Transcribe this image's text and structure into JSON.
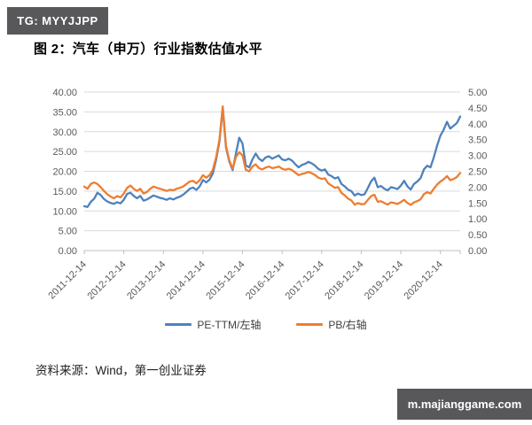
{
  "badge_top": "TG: MYYJJPP",
  "watermark": "m.majianggame.com",
  "title": "图 2：汽车（申万）行业指数估值水平",
  "source": "资料来源：Wind，第一创业证券",
  "colors": {
    "pe_line": "#4E81BD",
    "pb_line": "#ED7D31",
    "gridline": "#D9D9D9",
    "axis_line": "#BFBFBF",
    "axis_text": "#595959",
    "badge_bg": "#58585A"
  },
  "chart_data": {
    "type": "line",
    "title": "",
    "grid": true,
    "legend_position": "bottom",
    "x_tick_labels": [
      "2011-12-14",
      "2012-12-14",
      "2013-12-14",
      "2014-12-14",
      "2015-12-14",
      "2016-12-14",
      "2017-12-14",
      "2018-12-14",
      "2019-12-14",
      "2020-12-14"
    ],
    "x_tick_indices": [
      0,
      12,
      24,
      36,
      48,
      60,
      72,
      84,
      96,
      108
    ],
    "left_axis": {
      "min": 0,
      "max": 40,
      "step": 5,
      "labels": [
        "0.00",
        "5.00",
        "10.00",
        "15.00",
        "20.00",
        "25.00",
        "30.00",
        "35.00",
        "40.00"
      ]
    },
    "right_axis": {
      "min": 0,
      "max": 5,
      "step": 0.5,
      "labels": [
        "0.00",
        "0.50",
        "1.00",
        "1.50",
        "2.00",
        "2.50",
        "3.00",
        "3.50",
        "4.00",
        "4.50",
        "5.00"
      ]
    },
    "series": [
      {
        "name": "PE-TTM/左轴",
        "axis": "left",
        "color": "#4E81BD",
        "values": [
          11.2,
          11.0,
          12.3,
          13.1,
          14.6,
          14.0,
          13.0,
          12.4,
          12.0,
          11.8,
          12.2,
          11.9,
          12.8,
          14.3,
          14.6,
          13.8,
          13.2,
          13.8,
          12.6,
          12.9,
          13.4,
          13.9,
          13.6,
          13.3,
          13.1,
          12.8,
          13.2,
          12.9,
          13.3,
          13.6,
          14.1,
          14.8,
          15.6,
          15.9,
          15.3,
          16.2,
          17.8,
          17.2,
          17.9,
          19.5,
          23.0,
          27.5,
          36.0,
          26.0,
          22.5,
          20.3,
          24.5,
          28.5,
          27.0,
          21.5,
          21.0,
          23.0,
          24.5,
          23.2,
          22.6,
          23.5,
          23.8,
          23.2,
          23.6,
          24.0,
          23.0,
          22.8,
          23.2,
          22.7,
          21.8,
          21.0,
          21.6,
          21.9,
          22.4,
          22.0,
          21.4,
          20.6,
          20.2,
          20.5,
          19.2,
          18.8,
          18.2,
          18.5,
          16.8,
          16.2,
          15.4,
          15.0,
          13.9,
          14.4,
          14.0,
          14.2,
          15.8,
          17.5,
          18.4,
          16.0,
          16.3,
          15.6,
          15.2,
          16.0,
          15.8,
          15.5,
          16.4,
          17.6,
          16.2,
          15.4,
          16.8,
          17.4,
          18.3,
          20.5,
          21.4,
          21.0,
          23.5,
          26.5,
          29.0,
          30.5,
          32.5,
          30.8,
          31.5,
          32.2,
          33.8
        ]
      },
      {
        "name": "PB/右轴",
        "axis": "right",
        "color": "#ED7D31",
        "values": [
          2.02,
          1.95,
          2.1,
          2.15,
          2.1,
          2.0,
          1.88,
          1.78,
          1.7,
          1.65,
          1.72,
          1.68,
          1.8,
          1.98,
          2.05,
          1.95,
          1.88,
          1.95,
          1.8,
          1.85,
          1.95,
          2.02,
          1.98,
          1.95,
          1.92,
          1.88,
          1.92,
          1.9,
          1.95,
          1.98,
          2.02,
          2.1,
          2.18,
          2.2,
          2.12,
          2.22,
          2.38,
          2.3,
          2.38,
          2.55,
          2.95,
          3.5,
          4.55,
          3.3,
          2.85,
          2.58,
          2.95,
          3.1,
          3.0,
          2.55,
          2.5,
          2.65,
          2.72,
          2.6,
          2.56,
          2.62,
          2.65,
          2.6,
          2.62,
          2.65,
          2.58,
          2.55,
          2.58,
          2.54,
          2.46,
          2.38,
          2.42,
          2.44,
          2.48,
          2.44,
          2.38,
          2.3,
          2.26,
          2.28,
          2.12,
          2.05,
          1.98,
          2.0,
          1.82,
          1.74,
          1.64,
          1.58,
          1.45,
          1.5,
          1.46,
          1.47,
          1.6,
          1.72,
          1.76,
          1.54,
          1.56,
          1.5,
          1.45,
          1.52,
          1.5,
          1.47,
          1.53,
          1.6,
          1.5,
          1.44,
          1.52,
          1.56,
          1.62,
          1.78,
          1.84,
          1.8,
          1.95,
          2.08,
          2.18,
          2.25,
          2.35,
          2.22,
          2.26,
          2.32,
          2.45
        ]
      }
    ]
  }
}
